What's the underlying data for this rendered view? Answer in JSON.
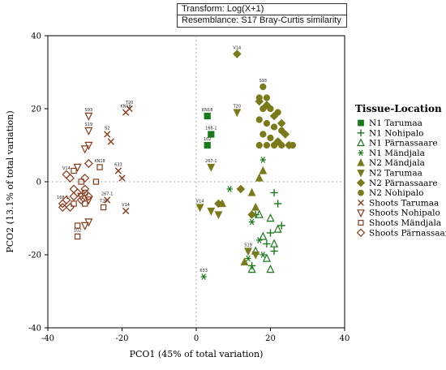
{
  "transform_box": {
    "transform": "Transform: Log(X+1)",
    "resemblance": "Resemblance: S17 Bray-Curtis similarity"
  },
  "chart_data": {
    "type": "scatter",
    "xlabel": "PCO1 (45% of total variation)",
    "ylabel": "PCO2 (13.1% of total variation)",
    "xlim": [
      -40,
      40
    ],
    "ylim": [
      -40,
      40
    ],
    "xticks": [
      -40,
      -20,
      0,
      20,
      40
    ],
    "yticks": [
      -40,
      -20,
      0,
      20,
      40
    ],
    "grid": false,
    "zero_lines": "dashed",
    "legend": {
      "title": "Tissue-Location",
      "placement": "right"
    },
    "series": [
      {
        "name": "N1 Tarumaa",
        "marker": "square",
        "color": "#1a7a1a",
        "points": [
          [
            3,
            18
          ],
          [
            4,
            13
          ],
          [
            3,
            10
          ]
        ],
        "labels": [
          "KN18",
          "168-1",
          "102"
        ]
      },
      {
        "name": "N1 Nohipalo",
        "marker": "plus",
        "color": "#1a7a1a",
        "points": [
          [
            21,
            -3
          ],
          [
            22,
            -6
          ],
          [
            16,
            -9
          ],
          [
            20,
            -14
          ],
          [
            23,
            -12
          ],
          [
            19,
            -17
          ],
          [
            21,
            -19
          ],
          [
            15,
            -23
          ]
        ],
        "labels": [
          "",
          "",
          "",
          "",
          "",
          "",
          "",
          ""
        ]
      },
      {
        "name": "N1 Pärnassaare",
        "marker": "triangle-up-open",
        "color": "#1a7a1a",
        "points": [
          [
            17,
            -9
          ],
          [
            20,
            -10
          ],
          [
            22,
            -13
          ],
          [
            18,
            -15
          ],
          [
            21,
            -17
          ],
          [
            16,
            -19
          ],
          [
            19,
            -21
          ],
          [
            15,
            -24
          ],
          [
            20,
            -24
          ]
        ],
        "labels": [
          "",
          "",
          "",
          "",
          "",
          "",
          "",
          "",
          ""
        ]
      },
      {
        "name": "N1 Mändjala",
        "marker": "asterisk",
        "color": "#1a7a1a",
        "points": [
          [
            9,
            -2
          ],
          [
            18,
            6
          ],
          [
            15,
            -11
          ],
          [
            17,
            -16
          ],
          [
            18,
            -20
          ],
          [
            14,
            -21
          ],
          [
            2,
            -26
          ]
        ],
        "labels": [
          "",
          "",
          "",
          "",
          "",
          "",
          "633"
        ]
      },
      {
        "name": "N2 Mändjala",
        "marker": "triangle-up",
        "color": "#7a7a1a",
        "points": [
          [
            17,
            1
          ],
          [
            18,
            3
          ],
          [
            7,
            -6
          ],
          [
            15,
            -3
          ],
          [
            16,
            -7
          ],
          [
            13,
            -22
          ]
        ],
        "labels": [
          "",
          "",
          "",
          "",
          "",
          ""
        ]
      },
      {
        "name": "N2 Tarumaa",
        "marker": "triangle-down",
        "color": "#7a7a1a",
        "points": [
          [
            11,
            19
          ],
          [
            4,
            4
          ],
          [
            1,
            -7
          ],
          [
            4,
            -8
          ],
          [
            6,
            -9
          ],
          [
            14,
            -19
          ],
          [
            16,
            -20
          ]
        ],
        "labels": [
          "T20",
          "267-1",
          "V14",
          "",
          "",
          "S19",
          ""
        ]
      },
      {
        "name": "N2 Pärnassaare",
        "marker": "diamond",
        "color": "#7a7a1a",
        "points": [
          [
            11,
            35
          ],
          [
            17,
            22
          ],
          [
            19,
            21
          ],
          [
            21,
            18
          ],
          [
            23,
            16
          ],
          [
            24,
            13
          ],
          [
            22,
            11
          ],
          [
            25,
            10
          ],
          [
            6,
            -6
          ],
          [
            15,
            -9
          ],
          [
            12,
            -2
          ]
        ],
        "labels": [
          "V14",
          "",
          "",
          "",
          "",
          "",
          "",
          "",
          "",
          "",
          ""
        ]
      },
      {
        "name": "N2 Nohipalo",
        "marker": "circle",
        "color": "#7a7a1a",
        "points": [
          [
            18,
            26
          ],
          [
            17,
            23
          ],
          [
            19,
            23
          ],
          [
            18,
            20
          ],
          [
            20,
            20
          ],
          [
            22,
            19
          ],
          [
            17,
            17
          ],
          [
            19,
            16
          ],
          [
            21,
            15
          ],
          [
            23,
            14
          ],
          [
            18,
            13
          ],
          [
            20,
            12
          ],
          [
            22,
            11
          ],
          [
            17,
            10
          ],
          [
            19,
            10
          ],
          [
            21,
            10
          ],
          [
            23,
            10
          ],
          [
            25,
            10
          ],
          [
            26,
            10
          ]
        ],
        "labels": [
          "S93",
          "",
          "",
          "",
          "",
          "",
          "",
          "",
          "",
          "",
          "",
          "",
          "",
          "",
          "",
          "",
          "",
          "",
          ""
        ]
      },
      {
        "name": "Shoots Tarumaa",
        "marker": "x",
        "color": "#8b3a1a",
        "points": [
          [
            -18,
            20
          ],
          [
            -19,
            19
          ],
          [
            -24,
            13
          ],
          [
            -23,
            11
          ],
          [
            -21,
            3
          ],
          [
            -20,
            1
          ],
          [
            -24,
            -5
          ],
          [
            -19,
            -8
          ]
        ],
        "labels": [
          "T20",
          "KN18",
          "S2",
          "",
          "633",
          "",
          "267-1",
          "V14"
        ]
      },
      {
        "name": "Shoots Nohipalo",
        "marker": "triangle-down-open",
        "color": "#8b3a1a",
        "points": [
          [
            -29,
            18
          ],
          [
            -29,
            14
          ],
          [
            -29,
            10
          ],
          [
            -30,
            9
          ],
          [
            -32,
            4
          ],
          [
            -31,
            -4
          ],
          [
            -29,
            -5
          ],
          [
            -29,
            -11
          ],
          [
            -30,
            -12
          ]
        ],
        "labels": [
          "S93",
          "S19",
          "",
          "",
          "",
          "",
          "",
          "",
          ""
        ]
      },
      {
        "name": "Shoots Mändjala",
        "marker": "square-open",
        "color": "#8b3a1a",
        "points": [
          [
            -26,
            4
          ],
          [
            -27,
            0
          ],
          [
            -33,
            3
          ],
          [
            -31,
            0
          ],
          [
            -30,
            -3
          ],
          [
            -33,
            -6
          ],
          [
            -30,
            -6
          ],
          [
            -25,
            -7
          ],
          [
            -32,
            -12
          ],
          [
            -32,
            -15
          ]
        ],
        "labels": [
          "KN18",
          "",
          "",
          "",
          "",
          "",
          "",
          "T20",
          "",
          "102"
        ]
      },
      {
        "name": "Shoots Pärnassaare",
        "marker": "diamond-open",
        "color": "#8b3a1a",
        "points": [
          [
            -36,
            -6
          ],
          [
            -35,
            -5
          ],
          [
            -34,
            -7
          ],
          [
            -33,
            -4
          ],
          [
            -32,
            -3
          ],
          [
            -31,
            -5
          ],
          [
            -30,
            -2
          ],
          [
            -29,
            -4
          ],
          [
            -35,
            2
          ],
          [
            -34,
            1
          ],
          [
            -33,
            -2
          ],
          [
            -36,
            -7
          ],
          [
            -29,
            5
          ],
          [
            -30,
            1
          ]
        ],
        "labels": [
          "168-1",
          "",
          "",
          "",
          "",
          "",
          "",
          "",
          "V14",
          "",
          "",
          "",
          "",
          ""
        ]
      }
    ]
  }
}
